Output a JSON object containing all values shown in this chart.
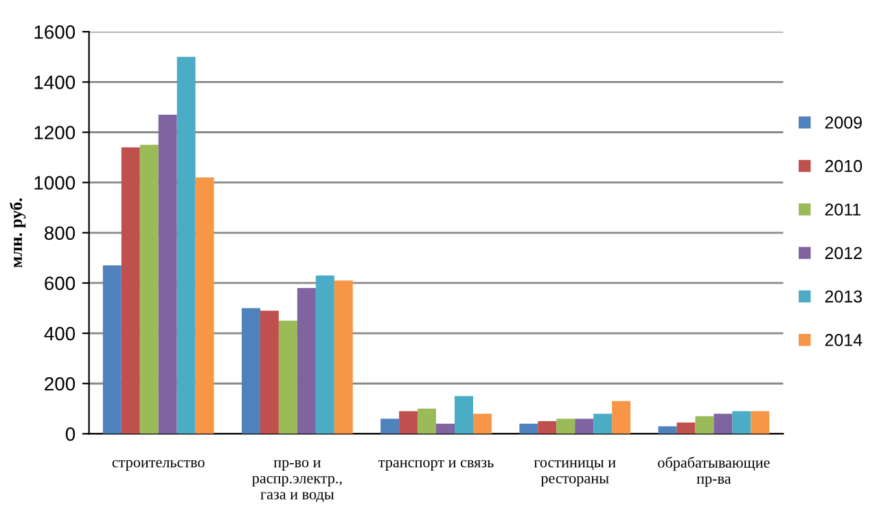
{
  "chart_data": {
    "type": "bar",
    "ylabel": "млн. руб.",
    "categories": [
      "строительство",
      "пр-во и распр.электр., газа и воды",
      "транспорт и связь",
      "гостиницы и рестораны",
      "обрабатывающие пр-ва"
    ],
    "series": [
      {
        "name": "2009",
        "color": "#4f81bd",
        "values": [
          670,
          500,
          60,
          40,
          30
        ]
      },
      {
        "name": "2010",
        "color": "#c0504d",
        "values": [
          1140,
          490,
          90,
          50,
          45
        ]
      },
      {
        "name": "2011",
        "color": "#9bbb59",
        "values": [
          1150,
          450,
          100,
          60,
          70
        ]
      },
      {
        "name": "2012",
        "color": "#8064a2",
        "values": [
          1270,
          580,
          40,
          60,
          80
        ]
      },
      {
        "name": "2013",
        "color": "#4bacc6",
        "values": [
          1500,
          630,
          150,
          80,
          90
        ]
      },
      {
        "name": "2014",
        "color": "#f79646",
        "values": [
          1020,
          610,
          80,
          130,
          90
        ]
      }
    ],
    "ylim": [
      0,
      1600
    ],
    "yticks": [
      0,
      200,
      400,
      600,
      800,
      1000,
      1200,
      1400,
      1600
    ],
    "grid": "y",
    "legend": "right"
  }
}
